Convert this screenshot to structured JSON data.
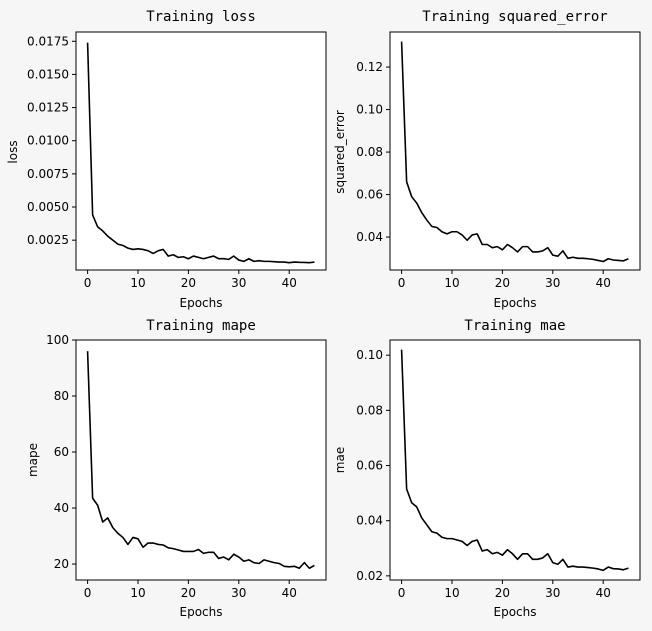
{
  "figure": {
    "background": "#f6f6f6",
    "line_color": "#000000"
  },
  "chart_data": [
    {
      "type": "line",
      "title": "Training loss",
      "xlabel": "Epochs",
      "ylabel": "loss",
      "xlim": [
        -2.3,
        47.3
      ],
      "ylim": [
        0.00025,
        0.0182
      ],
      "xticks": [
        0,
        10,
        20,
        30,
        40
      ],
      "yticks": [
        0.0025,
        0.005,
        0.0075,
        0.01,
        0.0125,
        0.015,
        0.0175
      ],
      "ytick_labels": [
        "0.0025",
        "0.0050",
        "0.0075",
        "0.0100",
        "0.0125",
        "0.0150",
        "0.0175"
      ],
      "grid": false,
      "x": [
        0,
        1,
        2,
        3,
        4,
        5,
        6,
        7,
        8,
        9,
        10,
        11,
        12,
        13,
        14,
        15,
        16,
        17,
        18,
        19,
        20,
        21,
        22,
        23,
        24,
        25,
        26,
        27,
        28,
        29,
        30,
        31,
        32,
        33,
        34,
        35,
        36,
        37,
        38,
        39,
        40,
        41,
        42,
        43,
        44,
        45
      ],
      "values": [
        0.0174,
        0.0044,
        0.0035,
        0.0032,
        0.0028,
        0.0025,
        0.0022,
        0.0021,
        0.0019,
        0.0018,
        0.00185,
        0.0018,
        0.0017,
        0.0015,
        0.0017,
        0.0018,
        0.0013,
        0.0014,
        0.0012,
        0.00125,
        0.0011,
        0.0013,
        0.0012,
        0.0011,
        0.0012,
        0.0013,
        0.0011,
        0.0011,
        0.00105,
        0.0013,
        0.001,
        0.0009,
        0.0011,
        0.0009,
        0.00095,
        0.0009,
        0.0009,
        0.00088,
        0.00085,
        0.00085,
        0.0008,
        0.00085,
        0.00083,
        0.00082,
        0.0008,
        0.00085
      ]
    },
    {
      "type": "line",
      "title": "Training squared_error",
      "xlabel": "Epochs",
      "ylabel": "squared_error",
      "xlim": [
        -2.3,
        47.3
      ],
      "ylim": [
        0.0245,
        0.1365
      ],
      "xticks": [
        0,
        10,
        20,
        30,
        40
      ],
      "yticks": [
        0.04,
        0.06,
        0.08,
        0.1,
        0.12
      ],
      "ytick_labels": [
        "0.04",
        "0.06",
        "0.08",
        "0.10",
        "0.12"
      ],
      "grid": false,
      "x": [
        0,
        1,
        2,
        3,
        4,
        5,
        6,
        7,
        8,
        9,
        10,
        11,
        12,
        13,
        14,
        15,
        16,
        17,
        18,
        19,
        20,
        21,
        22,
        23,
        24,
        25,
        26,
        27,
        28,
        29,
        30,
        31,
        32,
        33,
        34,
        35,
        36,
        37,
        38,
        39,
        40,
        41,
        42,
        43,
        44,
        45
      ],
      "values": [
        0.132,
        0.066,
        0.059,
        0.056,
        0.0515,
        0.048,
        0.045,
        0.0445,
        0.0425,
        0.0415,
        0.0425,
        0.0425,
        0.041,
        0.0385,
        0.041,
        0.0415,
        0.0365,
        0.0365,
        0.035,
        0.0355,
        0.034,
        0.0365,
        0.035,
        0.033,
        0.0355,
        0.0355,
        0.033,
        0.033,
        0.0335,
        0.035,
        0.0315,
        0.031,
        0.0335,
        0.03,
        0.0305,
        0.03,
        0.03,
        0.0298,
        0.0295,
        0.029,
        0.0285,
        0.0298,
        0.0292,
        0.029,
        0.0288,
        0.0298
      ]
    },
    {
      "type": "line",
      "title": "Training mape",
      "xlabel": "Epochs",
      "ylabel": "mape",
      "xlim": [
        -2.3,
        47.3
      ],
      "ylim": [
        14.3,
        100
      ],
      "xticks": [
        0,
        10,
        20,
        30,
        40
      ],
      "yticks": [
        20,
        40,
        60,
        80,
        100
      ],
      "ytick_labels": [
        "20",
        "40",
        "60",
        "80",
        "100"
      ],
      "grid": false,
      "x": [
        0,
        1,
        2,
        3,
        4,
        5,
        6,
        7,
        8,
        9,
        10,
        11,
        12,
        13,
        14,
        15,
        16,
        17,
        18,
        19,
        20,
        21,
        22,
        23,
        24,
        25,
        26,
        27,
        28,
        29,
        30,
        31,
        32,
        33,
        34,
        35,
        36,
        37,
        38,
        39,
        40,
        41,
        42,
        43,
        44,
        45
      ],
      "values": [
        96,
        43.5,
        41,
        35,
        36.5,
        33,
        31,
        29.5,
        27,
        29.5,
        29,
        26,
        27.5,
        27.5,
        27,
        26.8,
        25.8,
        25.5,
        25,
        24.5,
        24.5,
        24.5,
        25.2,
        23.8,
        24.2,
        24.2,
        22,
        22.5,
        21.5,
        23.5,
        22.5,
        21,
        21.5,
        20.5,
        20.2,
        21.5,
        21,
        20.5,
        20.2,
        19.2,
        19.0,
        19.2,
        18.5,
        20.5,
        18.5,
        19.5
      ]
    },
    {
      "type": "line",
      "title": "Training mae",
      "xlabel": "Epochs",
      "ylabel": "mae",
      "xlim": [
        -2.3,
        47.3
      ],
      "ylim": [
        0.0185,
        0.1055
      ],
      "xticks": [
        0,
        10,
        20,
        30,
        40
      ],
      "yticks": [
        0.02,
        0.04,
        0.06,
        0.08,
        0.1
      ],
      "ytick_labels": [
        "0.02",
        "0.04",
        "0.06",
        "0.08",
        "0.10"
      ],
      "grid": false,
      "x": [
        0,
        1,
        2,
        3,
        4,
        5,
        6,
        7,
        8,
        9,
        10,
        11,
        12,
        13,
        14,
        15,
        16,
        17,
        18,
        19,
        20,
        21,
        22,
        23,
        24,
        25,
        26,
        27,
        28,
        29,
        30,
        31,
        32,
        33,
        34,
        35,
        36,
        37,
        38,
        39,
        40,
        41,
        42,
        43,
        44,
        45
      ],
      "values": [
        0.102,
        0.0515,
        0.0465,
        0.045,
        0.041,
        0.0385,
        0.036,
        0.0355,
        0.034,
        0.0335,
        0.0335,
        0.033,
        0.0325,
        0.031,
        0.0325,
        0.033,
        0.029,
        0.0295,
        0.028,
        0.0285,
        0.0275,
        0.0295,
        0.028,
        0.026,
        0.028,
        0.028,
        0.026,
        0.026,
        0.0265,
        0.028,
        0.0248,
        0.0242,
        0.026,
        0.0232,
        0.0235,
        0.0232,
        0.0232,
        0.023,
        0.0228,
        0.0225,
        0.022,
        0.0232,
        0.0226,
        0.0225,
        0.0222,
        0.0228
      ]
    }
  ]
}
